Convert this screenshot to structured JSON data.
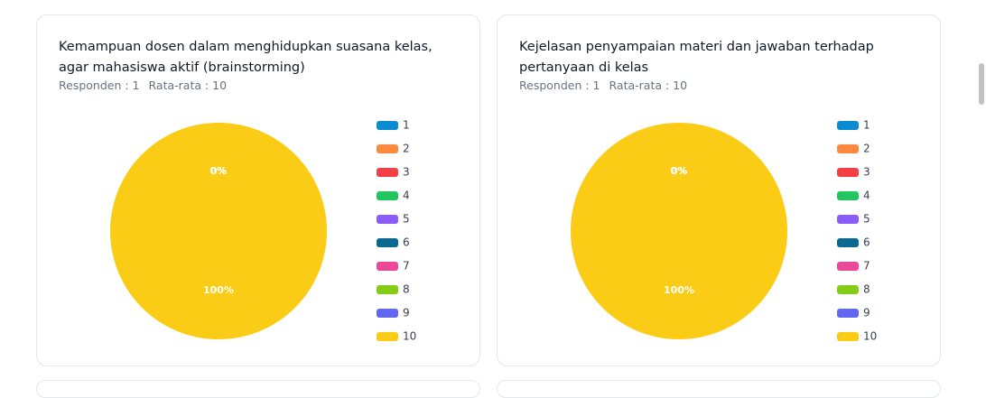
{
  "chart_data": [
    {
      "type": "pie",
      "title": "Kemampuan dosen dalam menghidupkan suasana kelas, agar mahasiswa aktif (brainstorming)",
      "subtitle": [
        "Responden : 1",
        "Rata-rata : 10"
      ],
      "categories": [
        "1",
        "2",
        "3",
        "4",
        "5",
        "6",
        "7",
        "8",
        "9",
        "10"
      ],
      "values": [
        0,
        0,
        0,
        0,
        0,
        0,
        0,
        0,
        0,
        100
      ],
      "value_labels": [
        "0%",
        "0%",
        "0%",
        "0%",
        "0%",
        "0%",
        "0%",
        "0%",
        "0%",
        "100%"
      ],
      "colors": [
        "#0b8bd1",
        "#fb8a40",
        "#f43f45",
        "#22c55e",
        "#8b5cf6",
        "#0d6890",
        "#ec4899",
        "#84cc16",
        "#6366f1",
        "#facc15"
      ]
    },
    {
      "type": "pie",
      "title": "Kejelasan penyampaian materi dan jawaban terhadap pertanyaan di kelas",
      "subtitle": [
        "Responden : 1",
        "Rata-rata : 10"
      ],
      "categories": [
        "1",
        "2",
        "3",
        "4",
        "5",
        "6",
        "7",
        "8",
        "9",
        "10"
      ],
      "values": [
        0,
        0,
        0,
        0,
        0,
        0,
        0,
        0,
        0,
        100
      ],
      "value_labels": [
        "0%",
        "0%",
        "0%",
        "0%",
        "0%",
        "0%",
        "0%",
        "0%",
        "0%",
        "100%"
      ],
      "colors": [
        "#0b8bd1",
        "#fb8a40",
        "#f43f45",
        "#22c55e",
        "#8b5cf6",
        "#0d6890",
        "#ec4899",
        "#84cc16",
        "#6366f1",
        "#facc15"
      ]
    }
  ]
}
